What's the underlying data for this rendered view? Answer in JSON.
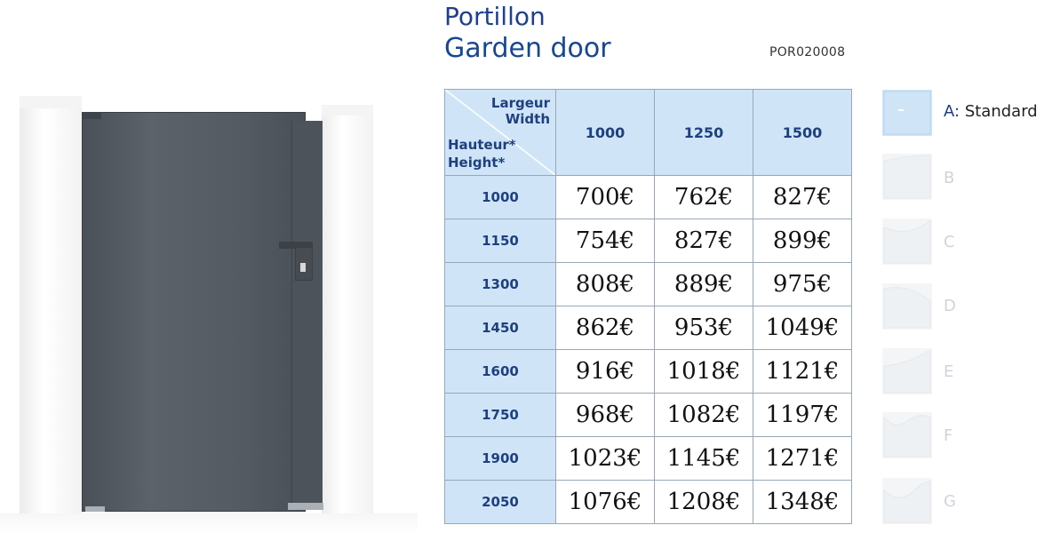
{
  "title_fr": "Portillon",
  "title_en": "Garden door",
  "reference": "POR020008",
  "table": {
    "width_label_fr": "Largeur",
    "width_label_en": "Width",
    "height_label_fr": "Hauteur*",
    "height_label_en": "Height*",
    "widths": [
      "1000",
      "1250",
      "1500"
    ],
    "rows": [
      {
        "height": "1000",
        "prices": [
          "700€",
          "762€",
          "827€"
        ]
      },
      {
        "height": "1150",
        "prices": [
          "754€",
          "827€",
          "899€"
        ]
      },
      {
        "height": "1300",
        "prices": [
          "808€",
          "889€",
          "975€"
        ]
      },
      {
        "height": "1450",
        "prices": [
          "862€",
          "953€",
          "1049€"
        ]
      },
      {
        "height": "1600",
        "prices": [
          "916€",
          "1018€",
          "1121€"
        ]
      },
      {
        "height": "1750",
        "prices": [
          "968€",
          "1082€",
          "1197€"
        ]
      },
      {
        "height": "1900",
        "prices": [
          "1023€",
          "1145€",
          "1271€"
        ]
      },
      {
        "height": "2050",
        "prices": [
          "1076€",
          "1208€",
          "1348€"
        ]
      }
    ]
  },
  "options": [
    {
      "letter": "A",
      "sep": ":",
      "name": "Standard",
      "active": true
    },
    {
      "letter": "B",
      "active": false
    },
    {
      "letter": "C",
      "active": false
    },
    {
      "letter": "D",
      "active": false
    },
    {
      "letter": "E",
      "active": false
    },
    {
      "letter": "F",
      "active": false
    },
    {
      "letter": "G",
      "active": false
    }
  ]
}
